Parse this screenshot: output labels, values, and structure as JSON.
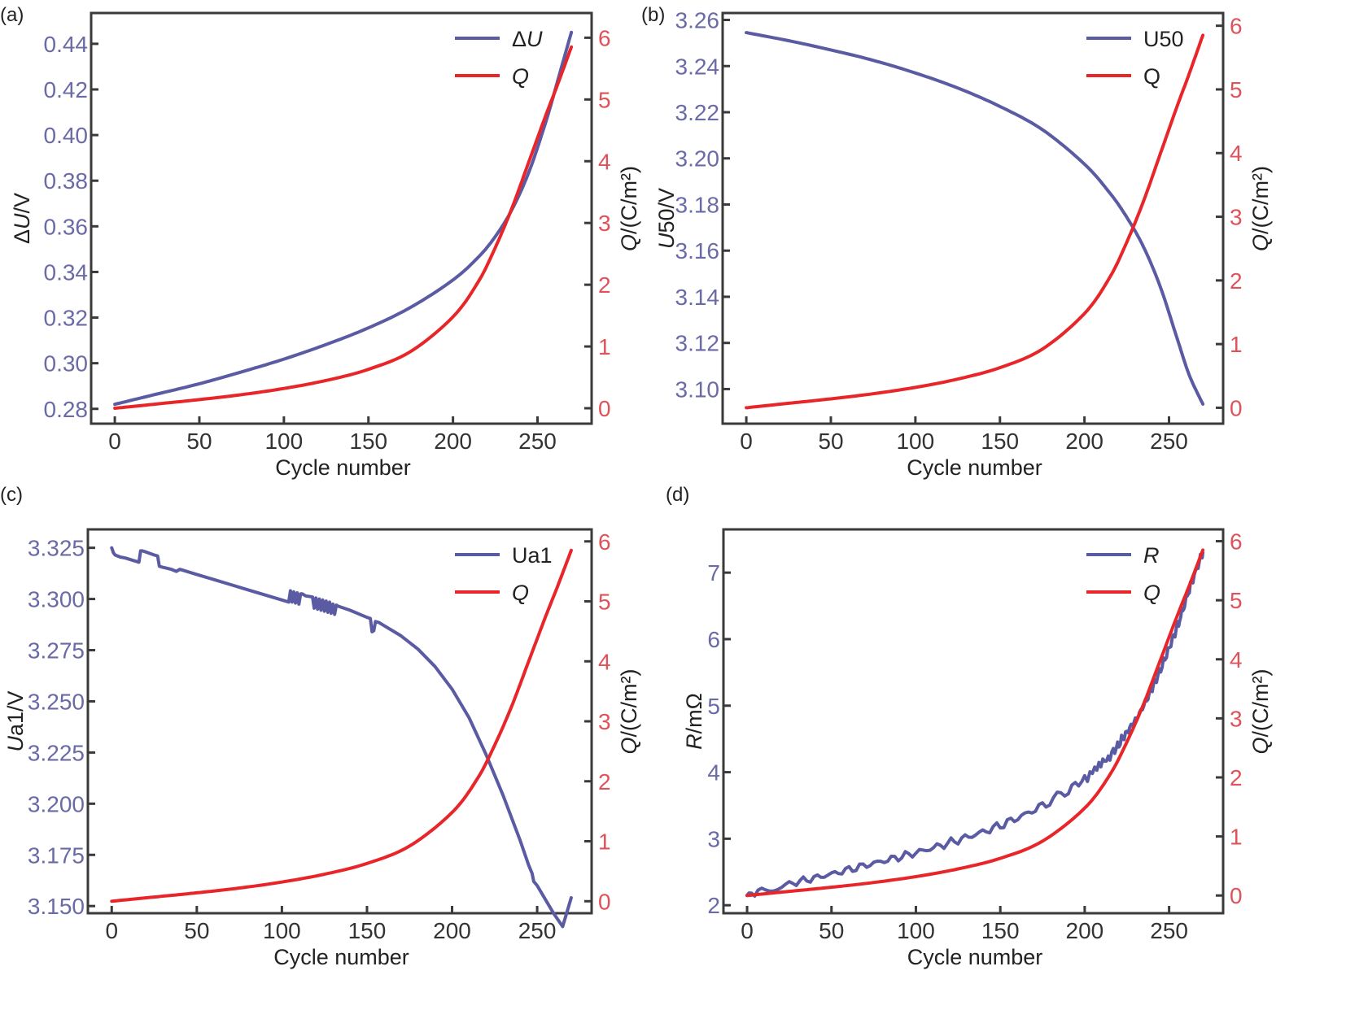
{
  "figure": {
    "colors": {
      "primary_series": "#5b5ba3",
      "q_series": "#e8262a",
      "left_axis_text": "#6a6aa6",
      "right_axis_text": "#e0525a"
    }
  },
  "chart_data": [
    {
      "panel": "(a)",
      "type": "line",
      "xlabel": "Cycle number",
      "ylabel": "ΔU/V",
      "ylabel_parts": [
        {
          "t": "Δ",
          "i": false
        },
        {
          "t": "U",
          "i": true
        },
        {
          "t": "/V",
          "i": false
        }
      ],
      "y2label": "Q/(C/m²)",
      "xlim": [
        -14,
        282
      ],
      "ylim": [
        0.2735,
        0.4535
      ],
      "y2lim": [
        -0.25,
        6.4
      ],
      "xticks": [
        0,
        50,
        100,
        150,
        200,
        250
      ],
      "yticks": [
        "0.28",
        "0.30",
        "0.32",
        "0.34",
        "0.36",
        "0.38",
        "0.40",
        "0.42",
        "0.44"
      ],
      "y2ticks": [
        "0",
        "1",
        "2",
        "3",
        "4",
        "5",
        "6"
      ],
      "legend": {
        "position": "top-right",
        "entries": [
          {
            "label": "ΔU",
            "italic": "U",
            "prefix": "Δ",
            "color": "#5b5ba3"
          },
          {
            "label": "Q",
            "italic": "Q",
            "prefix": "",
            "color": "#e8262a"
          }
        ]
      },
      "series": [
        {
          "name": "ΔU",
          "axis": "left",
          "color": "#5b5ba3",
          "x": [
            0,
            25,
            50,
            75,
            100,
            125,
            150,
            175,
            200,
            215,
            225,
            235,
            245,
            255,
            262,
            270
          ],
          "y": [
            0.282,
            0.2865,
            0.291,
            0.2962,
            0.3018,
            0.3082,
            0.3155,
            0.3245,
            0.3365,
            0.3465,
            0.3555,
            0.3675,
            0.384,
            0.406,
            0.424,
            0.445
          ]
        },
        {
          "name": "Q",
          "axis": "right",
          "color": "#e8262a",
          "x": [
            0,
            25,
            50,
            75,
            100,
            125,
            150,
            175,
            200,
            215,
            225,
            235,
            245,
            255,
            262,
            270
          ],
          "y": [
            0.0,
            0.07,
            0.14,
            0.22,
            0.32,
            0.45,
            0.63,
            0.92,
            1.48,
            2.05,
            2.6,
            3.25,
            4.0,
            4.75,
            5.25,
            5.85
          ]
        }
      ]
    },
    {
      "panel": "(b)",
      "type": "line",
      "xlabel": "Cycle number",
      "ylabel": "U50/V",
      "ylabel_parts": [
        {
          "t": "U",
          "i": true
        },
        {
          "t": "50/V",
          "i": false
        }
      ],
      "y2label": "Q/(C/m²)",
      "xlim": [
        -14,
        282
      ],
      "ylim": [
        3.085,
        3.263
      ],
      "y2lim": [
        -0.25,
        6.2
      ],
      "xticks": [
        0,
        50,
        100,
        150,
        200,
        250
      ],
      "yticks": [
        "3.10",
        "3.12",
        "3.14",
        "3.16",
        "3.18",
        "3.20",
        "3.22",
        "3.24",
        "3.26"
      ],
      "y2ticks": [
        "0",
        "1",
        "2",
        "3",
        "4",
        "5",
        "6"
      ],
      "legend": {
        "position": "top-right",
        "entries": [
          {
            "label": "U50",
            "italic": "",
            "prefix": "",
            "color": "#5b5ba3"
          },
          {
            "label": "Q",
            "italic": "",
            "prefix": "",
            "color": "#e8262a"
          }
        ]
      },
      "series": [
        {
          "name": "U50",
          "axis": "left",
          "color": "#5b5ba3",
          "x": [
            0,
            25,
            50,
            75,
            100,
            125,
            150,
            175,
            200,
            215,
            225,
            235,
            245,
            255,
            262,
            270
          ],
          "y": [
            3.2545,
            3.251,
            3.247,
            3.2425,
            3.237,
            3.2305,
            3.2225,
            3.2125,
            3.1975,
            3.185,
            3.1745,
            3.1615,
            3.144,
            3.1215,
            3.106,
            3.0935
          ]
        },
        {
          "name": "Q",
          "axis": "right",
          "color": "#e8262a",
          "x": [
            0,
            25,
            50,
            75,
            100,
            125,
            150,
            175,
            200,
            215,
            225,
            235,
            245,
            255,
            262,
            270
          ],
          "y": [
            0.0,
            0.07,
            0.14,
            0.22,
            0.32,
            0.45,
            0.63,
            0.92,
            1.48,
            2.05,
            2.6,
            3.25,
            4.0,
            4.75,
            5.25,
            5.85
          ]
        }
      ]
    },
    {
      "panel": "(c)",
      "type": "line",
      "xlabel": "Cycle number",
      "ylabel": "Ua1/V",
      "ylabel_parts": [
        {
          "t": "U",
          "i": true
        },
        {
          "t": "a1/V",
          "i": false
        }
      ],
      "y2label": "Q/(C/m²)",
      "xlim": [
        -14,
        282
      ],
      "ylim": [
        3.1465,
        3.334
      ],
      "y2lim": [
        -0.2,
        6.2
      ],
      "xticks": [
        0,
        50,
        100,
        150,
        200,
        250
      ],
      "yticks": [
        "3.150",
        "3.175",
        "3.200",
        "3.225",
        "3.250",
        "3.275",
        "3.300",
        "3.325"
      ],
      "y2ticks": [
        "0",
        "1",
        "2",
        "3",
        "4",
        "5",
        "6"
      ],
      "legend": {
        "position": "top-right",
        "entries": [
          {
            "label": "Ua1",
            "italic": "",
            "prefix": "",
            "color": "#5b5ba3"
          },
          {
            "label": "Q",
            "italic": "Q",
            "prefix": "",
            "color": "#e8262a"
          }
        ]
      },
      "series": [
        {
          "name": "Ua1",
          "axis": "left",
          "color": "#5b5ba3",
          "x": [
            0,
            1,
            2,
            5,
            8,
            12,
            16,
            17,
            18,
            20,
            25,
            27,
            28,
            30,
            35,
            38,
            40,
            42,
            50,
            60,
            70,
            80,
            90,
            100,
            104,
            105,
            106,
            107,
            108,
            109,
            110,
            111,
            112,
            113,
            114,
            118,
            119,
            120,
            121,
            122,
            123,
            124,
            125,
            126,
            127,
            128,
            129,
            130,
            131,
            132,
            133,
            140,
            150,
            152,
            153,
            154,
            155,
            157,
            160,
            170,
            180,
            190,
            200,
            210,
            220,
            230,
            240,
            245,
            247,
            248,
            250,
            255,
            260,
            265,
            270
          ],
          "y": [
            3.325,
            3.3225,
            3.3215,
            3.3205,
            3.32,
            3.319,
            3.318,
            3.3235,
            3.3235,
            3.323,
            3.3215,
            3.321,
            3.316,
            3.3155,
            3.3145,
            3.3135,
            3.3145,
            3.314,
            3.312,
            3.3095,
            3.307,
            3.3045,
            3.302,
            3.2995,
            3.2985,
            3.304,
            3.2985,
            3.3035,
            3.298,
            3.303,
            3.2975,
            3.3025,
            3.3025,
            3.302,
            3.3015,
            3.301,
            3.2955,
            3.3005,
            3.295,
            3.3,
            3.2945,
            3.2995,
            3.294,
            3.299,
            3.2935,
            3.2985,
            3.293,
            3.2975,
            3.2925,
            3.297,
            3.2965,
            3.2945,
            3.291,
            3.2905,
            3.284,
            3.2845,
            3.289,
            3.2885,
            3.287,
            3.282,
            3.2755,
            3.267,
            3.256,
            3.242,
            3.224,
            3.204,
            3.182,
            3.17,
            3.166,
            3.162,
            3.16,
            3.153,
            3.146,
            3.14,
            3.154
          ]
        },
        {
          "name": "Q",
          "axis": "right",
          "color": "#e8262a",
          "x": [
            0,
            25,
            50,
            75,
            100,
            125,
            150,
            175,
            200,
            215,
            225,
            235,
            245,
            255,
            262,
            270
          ],
          "y": [
            0.0,
            0.07,
            0.14,
            0.22,
            0.32,
            0.45,
            0.63,
            0.92,
            1.48,
            2.05,
            2.6,
            3.25,
            4.0,
            4.75,
            5.25,
            5.85
          ]
        }
      ]
    },
    {
      "panel": "(d)",
      "type": "line",
      "xlabel": "Cycle number",
      "ylabel": "R/mΩ",
      "ylabel_parts": [
        {
          "t": "R",
          "i": true
        },
        {
          "t": "/mΩ",
          "i": false
        }
      ],
      "y2label": "Q/(C/m²)",
      "xlim": [
        -14,
        282
      ],
      "ylim": [
        1.88,
        7.65
      ],
      "y2lim": [
        -0.3,
        6.2
      ],
      "xticks": [
        0,
        50,
        100,
        150,
        200,
        250
      ],
      "yticks": [
        "2",
        "3",
        "4",
        "5",
        "6",
        "7"
      ],
      "y2ticks": [
        "0",
        "1",
        "2",
        "3",
        "4",
        "5",
        "6"
      ],
      "legend": {
        "position": "top-right",
        "entries": [
          {
            "label": "R",
            "italic": "R",
            "prefix": "",
            "color": "#5b5ba3"
          },
          {
            "label": "Q",
            "italic": "Q",
            "prefix": "",
            "color": "#e8262a"
          }
        ]
      },
      "series": [
        {
          "name": "R",
          "axis": "left",
          "color": "#5b5ba3",
          "noisy": true,
          "x": [
            0,
            25,
            50,
            75,
            100,
            125,
            150,
            175,
            200,
            215,
            225,
            235,
            245,
            255,
            262,
            270
          ],
          "y": [
            2.15,
            2.32,
            2.47,
            2.63,
            2.79,
            2.98,
            3.2,
            3.5,
            3.9,
            4.25,
            4.6,
            5.0,
            5.55,
            6.2,
            6.75,
            7.3
          ]
        },
        {
          "name": "Q",
          "axis": "right",
          "color": "#e8262a",
          "x": [
            0,
            25,
            50,
            75,
            100,
            125,
            150,
            175,
            200,
            215,
            225,
            235,
            245,
            255,
            262,
            270
          ],
          "y": [
            0.0,
            0.07,
            0.14,
            0.22,
            0.32,
            0.45,
            0.63,
            0.92,
            1.48,
            2.05,
            2.6,
            3.25,
            4.0,
            4.75,
            5.25,
            5.85
          ]
        }
      ]
    }
  ]
}
